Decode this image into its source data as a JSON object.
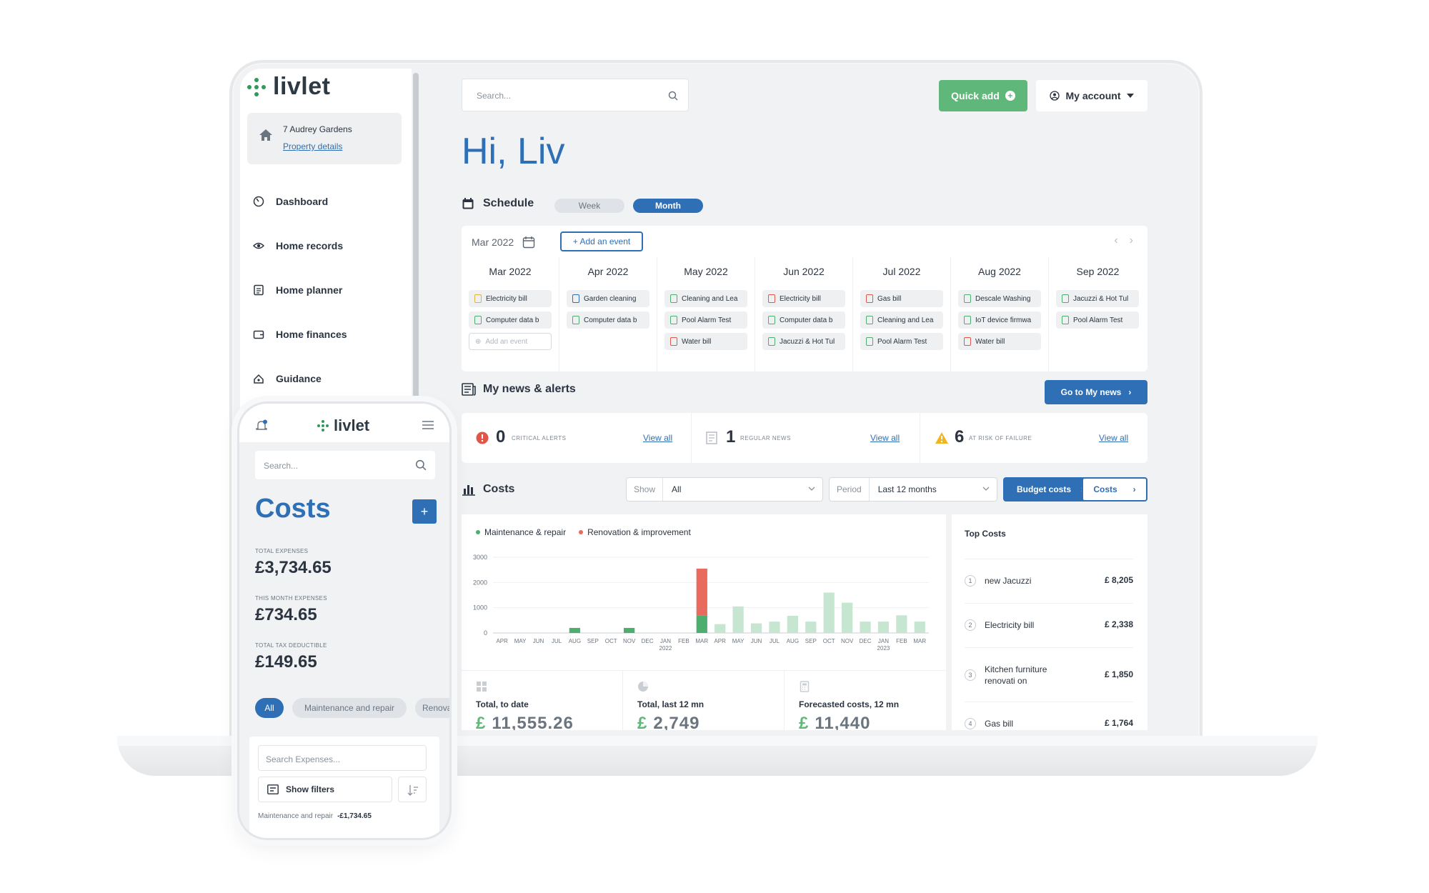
{
  "brand": "livlet",
  "property": {
    "name": "7 Audrey Gardens",
    "link": "Property details"
  },
  "nav": [
    {
      "label": "Dashboard",
      "icon": "dashboard-icon"
    },
    {
      "label": "Home records",
      "icon": "eye-icon"
    },
    {
      "label": "Home planner",
      "icon": "planner-icon"
    },
    {
      "label": "Home finances",
      "icon": "wallet-icon"
    },
    {
      "label": "Guidance",
      "icon": "guidance-icon"
    }
  ],
  "header": {
    "search_placeholder": "Search...",
    "quick_add": "Quick add",
    "account": "My account"
  },
  "greeting": "Hi, Liv",
  "schedule": {
    "title": "Schedule",
    "week": "Week",
    "month": "Month",
    "current": "Mar 2022",
    "add_event": "+ Add an event",
    "months": [
      {
        "name": "Mar 2022",
        "events": [
          {
            "label": "Electricity bill",
            "color": "#e0b23a"
          },
          {
            "label": "Computer data b",
            "color": "#4caf6e"
          }
        ],
        "add": "Add an event"
      },
      {
        "name": "Apr 2022",
        "events": [
          {
            "label": "Garden cleaning",
            "color": "#2f6fb5"
          },
          {
            "label": "Computer data b",
            "color": "#4caf6e"
          }
        ]
      },
      {
        "name": "May 2022",
        "events": [
          {
            "label": "Cleaning and Lea",
            "color": "#4caf6e"
          },
          {
            "label": "Pool Alarm Test",
            "color": "#4caf6e"
          },
          {
            "label": "Water bill",
            "color": "#e0574a"
          }
        ]
      },
      {
        "name": "Jun 2022",
        "events": [
          {
            "label": "Electricity bill",
            "color": "#e0574a"
          },
          {
            "label": "Computer data b",
            "color": "#4caf6e"
          },
          {
            "label": "Jacuzzi & Hot Tul",
            "color": "#4caf6e"
          }
        ]
      },
      {
        "name": "Jul 2022",
        "events": [
          {
            "label": "Gas bill",
            "color": "#e0574a"
          },
          {
            "label": "Cleaning and Lea",
            "color": "#4caf6e"
          },
          {
            "label": "Pool Alarm Test",
            "color": "#4caf6e"
          }
        ]
      },
      {
        "name": "Aug 2022",
        "events": [
          {
            "label": "Descale Washing",
            "color": "#4caf6e"
          },
          {
            "label": "IoT device firmwa",
            "color": "#4caf6e"
          },
          {
            "label": "Water bill",
            "color": "#e0574a"
          }
        ]
      },
      {
        "name": "Sep 2022",
        "events": [
          {
            "label": "Jacuzzi & Hot Tul",
            "color": "#4caf6e"
          },
          {
            "label": "Pool Alarm Test",
            "color": "#4caf6e"
          }
        ]
      }
    ]
  },
  "news": {
    "title": "My news & alerts",
    "go": "Go to My news",
    "cells": [
      {
        "count": "0",
        "label": "CRITICAL ALERTS",
        "link": "View all"
      },
      {
        "count": "1",
        "label": "REGULAR NEWS",
        "link": "View all"
      },
      {
        "count": "6",
        "label": "AT RISK OF FAILURE",
        "link": "View all"
      }
    ]
  },
  "costs": {
    "title": "Costs",
    "show_label": "Show",
    "show_value": "All",
    "period_label": "Period",
    "period_value": "Last 12 months",
    "budget_button": "Budget costs",
    "costs_button": "Costs",
    "totals": [
      {
        "label": "Total, to date",
        "currency": "£",
        "value": "11,555.26"
      },
      {
        "label": "Total, last 12 mn",
        "currency": "£",
        "value": "2,749"
      },
      {
        "label": "Forecasted costs, 12 mn",
        "currency": "£",
        "value": "11,440"
      }
    ],
    "top_title": "Top Costs",
    "top": [
      {
        "n": "1",
        "name": "new Jacuzzi",
        "amount": "£ 8,205"
      },
      {
        "n": "2",
        "name": "Electricity bill",
        "amount": "£ 2,338"
      },
      {
        "n": "3",
        "name": "Kitchen furniture renovati on",
        "amount": "£ 1,850"
      },
      {
        "n": "4",
        "name": "Gas bill",
        "amount": "£ 1,764"
      }
    ]
  },
  "chart_data": {
    "type": "bar",
    "stacked": true,
    "categories": [
      "APR",
      "MAY",
      "JUN",
      "JUL",
      "AUG",
      "SEP",
      "OCT",
      "NOV",
      "DEC",
      "JAN",
      "FEB",
      "MAR",
      "APR",
      "MAY",
      "JUN",
      "JUL",
      "AUG",
      "SEP",
      "OCT",
      "NOV",
      "DEC",
      "JAN",
      "FEB",
      "MAR"
    ],
    "year_labels": [
      {
        "index": 9,
        "label": "2022"
      },
      {
        "index": 21,
        "label": "2023"
      }
    ],
    "series": [
      {
        "name": "Maintenance & repair",
        "color": "#4caf6e",
        "values": [
          0,
          0,
          0,
          0,
          200,
          0,
          0,
          200,
          0,
          0,
          0,
          700,
          0,
          0,
          0,
          0,
          0,
          0,
          0,
          0,
          0,
          0,
          0,
          0
        ]
      },
      {
        "name": "Renovation & improvement",
        "color": "#e96b5e",
        "values": [
          0,
          0,
          0,
          0,
          0,
          0,
          0,
          0,
          0,
          0,
          0,
          1850,
          0,
          0,
          0,
          0,
          0,
          0,
          0,
          0,
          0,
          0,
          0,
          0
        ]
      },
      {
        "name": "",
        "color": "#c7e6d1",
        "values": [
          0,
          0,
          0,
          0,
          0,
          0,
          0,
          0,
          0,
          0,
          0,
          0,
          350,
          1050,
          380,
          450,
          680,
          450,
          1600,
          1200,
          450,
          450,
          700,
          450
        ]
      }
    ],
    "yticks": [
      0,
      1000,
      2000,
      3000
    ],
    "ylim": [
      0,
      3000
    ],
    "grid": true,
    "legend": "top-left"
  },
  "phone": {
    "brand": "livlet",
    "search_placeholder": "Search...",
    "title": "Costs",
    "add": "+",
    "stats": [
      {
        "label": "TOTAL EXPENSES",
        "value": "£3,734.65"
      },
      {
        "label": "THIS MONTH EXPENSES",
        "value": "£734.65"
      },
      {
        "label": "TOTAL TAX DEDUCTIBLE",
        "value": "£149.65"
      }
    ],
    "chips": [
      "All",
      "Maintenance and repair",
      "Renovation"
    ],
    "search_expenses": "Search Expenses...",
    "show_filters": "Show filters",
    "row_label": "Maintenance and repair",
    "row_amount": "-£1,734.65"
  }
}
